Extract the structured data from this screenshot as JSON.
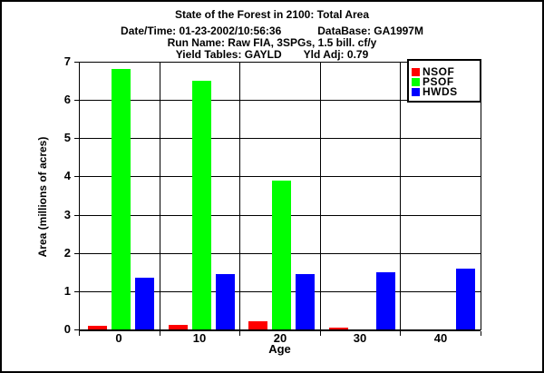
{
  "header": {
    "title": "State of the Forest in 2100: Total Area",
    "datetime_label": "Date/Time: 01-23-2002/10:56:36",
    "database_label": "DataBase: GA1997M",
    "run_name_label": "Run Name: Raw FIA, 3SPGs, 1.5 bill. cf/y",
    "yield_tables_label": "Yield Tables: GAYLD",
    "yld_adj_label": "Yld Adj: 0.79"
  },
  "chart_data": {
    "type": "bar",
    "title": "State of the Forest in 2100: Total Area",
    "categories": [
      "0",
      "10",
      "20",
      "30",
      "40"
    ],
    "series": [
      {
        "name": "NSOF",
        "color": "#ff0000",
        "values": [
          0.1,
          0.12,
          0.22,
          0.05,
          0
        ]
      },
      {
        "name": "PSOF",
        "color": "#00ff00",
        "values": [
          6.8,
          6.5,
          3.9,
          0,
          0
        ]
      },
      {
        "name": "HWDS",
        "color": "#0000ff",
        "values": [
          1.35,
          1.45,
          1.45,
          1.5,
          1.6
        ]
      }
    ],
    "xlabel": "Age",
    "ylabel": "Area (millions of acres)",
    "ylim": [
      0,
      7
    ],
    "yticks": [
      0,
      1,
      2,
      3,
      4,
      5,
      6,
      7
    ],
    "grid": true,
    "legend_position": "top-right",
    "grid_color": "#000000",
    "background_color": "#ffffff"
  }
}
